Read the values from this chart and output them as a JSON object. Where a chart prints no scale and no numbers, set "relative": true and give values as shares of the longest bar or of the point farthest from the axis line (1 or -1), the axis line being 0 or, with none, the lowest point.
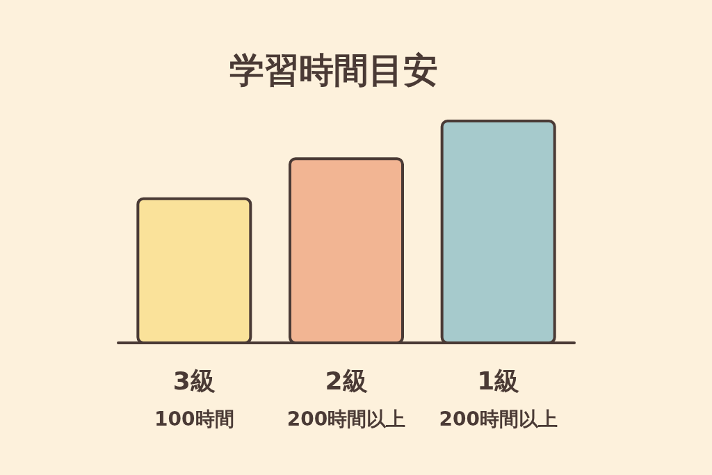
{
  "chart_data": {
    "type": "bar",
    "title": "学習時間目安",
    "categories": [
      "3級",
      "2級",
      "1級"
    ],
    "values": [
      0.65,
      0.83,
      1
    ],
    "colors": [
      "#fae29a",
      "#f2b593",
      "#a6cacc"
    ],
    "relative": true,
    "annotations": [
      "100時間",
      "200時間以上",
      "200時間以上"
    ]
  }
}
